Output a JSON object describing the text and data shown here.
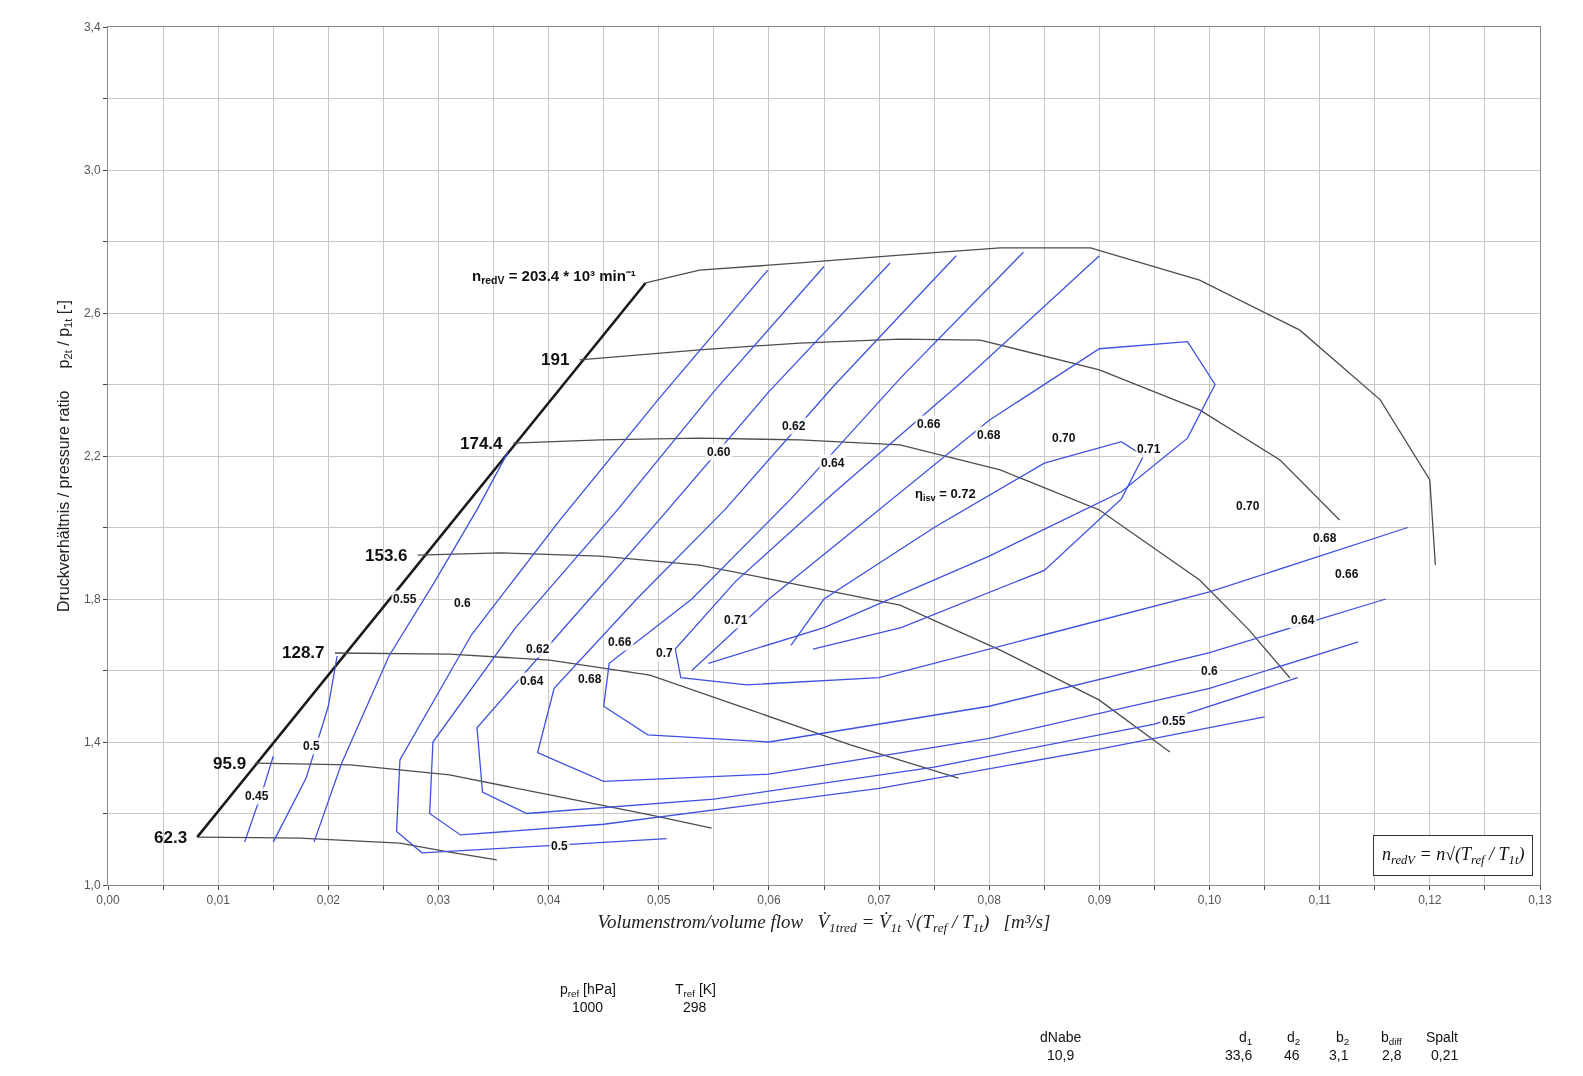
{
  "chart_data": {
    "type": "line",
    "xlabel": "Volumenstrom/volume flow   V̇$_{1tred}$ = V̇$_{1t}$ √(T$_{ref}$ / T$_{1t}$)   [m³/s]",
    "ylabel": "Druckverhältnis / pressure ratio     p$_{2t}$ / p$_{1t}$ [-]",
    "xlim": [
      0,
      0.13
    ],
    "ylim": [
      1.0,
      3.4
    ],
    "xticks": [
      {
        "value": 0,
        "label": "0,00"
      },
      {
        "value": 0.005,
        "label": null
      },
      {
        "value": 0.01,
        "label": "0,01"
      },
      {
        "value": 0.015,
        "label": null
      },
      {
        "value": 0.02,
        "label": "0,02"
      },
      {
        "value": 0.025,
        "label": null
      },
      {
        "value": 0.03,
        "label": "0,03"
      },
      {
        "value": 0.035,
        "label": null
      },
      {
        "value": 0.04,
        "label": "0,04"
      },
      {
        "value": 0.045,
        "label": null
      },
      {
        "value": 0.05,
        "label": "0,05"
      },
      {
        "value": 0.055,
        "label": null
      },
      {
        "value": 0.06,
        "label": "0,06"
      },
      {
        "value": 0.065,
        "label": null
      },
      {
        "value": 0.07,
        "label": "0,07"
      },
      {
        "value": 0.075,
        "label": null
      },
      {
        "value": 0.08,
        "label": "0,08"
      },
      {
        "value": 0.085,
        "label": null
      },
      {
        "value": 0.09,
        "label": "0,09"
      },
      {
        "value": 0.095,
        "label": null
      },
      {
        "value": 0.1,
        "label": "0,10"
      },
      {
        "value": 0.105,
        "label": null
      },
      {
        "value": 0.11,
        "label": "0,11"
      },
      {
        "value": 0.115,
        "label": null
      },
      {
        "value": 0.12,
        "label": "0,12"
      },
      {
        "value": 0.125,
        "label": null
      },
      {
        "value": 0.13,
        "label": "0,13"
      }
    ],
    "yticks": [
      {
        "value": 1.0,
        "label": "1,0"
      },
      {
        "value": 1.2,
        "label": null
      },
      {
        "value": 1.4,
        "label": "1,4"
      },
      {
        "value": 1.6,
        "label": null
      },
      {
        "value": 1.8,
        "label": "1,8"
      },
      {
        "value": 2.0,
        "label": null
      },
      {
        "value": 2.2,
        "label": "2,2"
      },
      {
        "value": 2.4,
        "label": null
      },
      {
        "value": 2.6,
        "label": "2,6"
      },
      {
        "value": 2.8,
        "label": null
      },
      {
        "value": 3.0,
        "label": "3,0"
      },
      {
        "value": 3.2,
        "label": null
      },
      {
        "value": 3.4,
        "label": "3,4"
      }
    ],
    "grid": true,
    "marker": "none",
    "line_style": "solid",
    "series": [
      {
        "color": "#1a1a1a",
        "x": [
          0.0081,
          0.0488
        ],
        "values": [
          1.134,
          2.684
        ]
      },
      {
        "color": "#4d4d4d",
        "x": [
          0.0081,
          0.0174,
          0.0265,
          0.031,
          0.0353
        ],
        "values": [
          1.134,
          1.131,
          1.117,
          1.092,
          1.07
        ]
      },
      {
        "color": "#4d4d4d",
        "x": [
          0.0134,
          0.022,
          0.031,
          0.0401,
          0.0492,
          0.0548
        ],
        "values": [
          1.341,
          1.336,
          1.308,
          1.252,
          1.196,
          1.159
        ]
      },
      {
        "color": "#4d4d4d",
        "x": [
          0.0206,
          0.031,
          0.0401,
          0.0492,
          0.0583,
          0.0674,
          0.0772
        ],
        "values": [
          1.649,
          1.646,
          1.629,
          1.587,
          1.49,
          1.392,
          1.299
        ]
      },
      {
        "color": "#4d4d4d",
        "x": [
          0.0281,
          0.0356,
          0.0447,
          0.0537,
          0.0628,
          0.0719,
          0.081,
          0.09,
          0.0964
        ],
        "values": [
          1.923,
          1.929,
          1.92,
          1.895,
          1.839,
          1.783,
          1.657,
          1.517,
          1.372
        ]
      },
      {
        "color": "#4d4d4d",
        "x": [
          0.0368,
          0.0447,
          0.0537,
          0.0628,
          0.0719,
          0.081,
          0.09,
          0.0991,
          0.1036,
          0.1073
        ],
        "values": [
          2.236,
          2.245,
          2.25,
          2.245,
          2.231,
          2.161,
          2.049,
          1.853,
          1.713,
          1.579
        ]
      },
      {
        "color": "#4d4d4d",
        "x": [
          0.0428,
          0.0537,
          0.0628,
          0.0719,
          0.0792,
          0.09,
          0.0991,
          0.1064,
          0.1118
        ],
        "values": [
          2.469,
          2.497,
          2.516,
          2.527,
          2.524,
          2.441,
          2.329,
          2.189,
          2.021
        ]
      },
      {
        "color": "#4d4d4d",
        "x": [
          0.0488,
          0.0537,
          0.0628,
          0.0719,
          0.081,
          0.0892,
          0.0991,
          0.1082,
          0.1155,
          0.12,
          0.1205
        ],
        "values": [
          2.684,
          2.72,
          2.74,
          2.762,
          2.782,
          2.782,
          2.692,
          2.552,
          2.357,
          2.133,
          1.895
        ]
      },
      {
        "color": "#3f51e0",
        "x": [
          0.0124,
          0.0142,
          0.015
        ],
        "values": [
          1.12,
          1.28,
          1.36
        ]
      },
      {
        "color": "#3f51e0",
        "x": [
          0.015,
          0.018,
          0.02,
          0.0208
        ],
        "values": [
          1.12,
          1.3,
          1.5,
          1.64
        ]
      },
      {
        "color": "#3f51e0",
        "x": [
          0.0187,
          0.0212,
          0.0255,
          0.0295,
          0.0335,
          0.0363
        ],
        "values": [
          1.12,
          1.34,
          1.64,
          1.84,
          2.05,
          2.21
        ]
      },
      {
        "color": "#3f51e0",
        "x": [
          0.0599,
          0.05,
          0.041,
          0.033,
          0.0265,
          0.0262,
          0.0285,
          0.04,
          0.0507
        ],
        "values": [
          2.72,
          2.36,
          2.02,
          1.7,
          1.35,
          1.15,
          1.09,
          1.11,
          1.13
        ]
      },
      {
        "color": "#3f51e0",
        "x": [
          0.065,
          0.055,
          0.046,
          0.037,
          0.0295,
          0.0292,
          0.032,
          0.045,
          0.07,
          0.09,
          0.105
        ],
        "values": [
          2.73,
          2.38,
          2.04,
          1.72,
          1.4,
          1.2,
          1.14,
          1.17,
          1.27,
          1.38,
          1.47
        ]
      },
      {
        "color": "#3f51e0",
        "x": [
          0.071,
          0.06,
          0.05,
          0.042,
          0.0335,
          0.034,
          0.038,
          0.055,
          0.075,
          0.095,
          0.108
        ],
        "values": [
          2.74,
          2.38,
          2.02,
          1.74,
          1.44,
          1.26,
          1.2,
          1.24,
          1.33,
          1.45,
          1.58
        ]
      },
      {
        "color": "#3f51e0",
        "x": [
          0.077,
          0.066,
          0.056,
          0.048,
          0.0405,
          0.039,
          0.045,
          0.06,
          0.08,
          0.1,
          0.1135
        ],
        "values": [
          2.76,
          2.4,
          2.05,
          1.8,
          1.55,
          1.37,
          1.29,
          1.31,
          1.41,
          1.55,
          1.68
        ]
      },
      {
        "color": "#3f51e0",
        "x": [
          0.0831,
          0.072,
          0.062,
          0.053,
          0.0455,
          0.045,
          0.049,
          0.06,
          0.08,
          0.1,
          0.116
        ],
        "values": [
          2.77,
          2.42,
          2.08,
          1.8,
          1.62,
          1.5,
          1.42,
          1.4,
          1.5,
          1.65,
          1.8
        ]
      },
      {
        "color": "#3f51e0",
        "x": [
          0.09,
          0.078,
          0.066,
          0.057,
          0.0515,
          0.052,
          0.058,
          0.07,
          0.085,
          0.1,
          0.118
        ],
        "values": [
          2.76,
          2.42,
          2.1,
          1.85,
          1.66,
          1.58,
          1.56,
          1.58,
          1.7,
          1.82,
          2.0
        ]
      },
      {
        "color": "#3f51e0",
        "x": [
          0.053,
          0.06,
          0.07,
          0.08,
          0.09,
          0.098,
          0.1005,
          0.098,
          0.092,
          0.08,
          0.065,
          0.0545
        ],
        "values": [
          1.6,
          1.8,
          2.05,
          2.3,
          2.5,
          2.52,
          2.4,
          2.25,
          2.1,
          1.92,
          1.72,
          1.62
        ]
      },
      {
        "color": "#3f51e0",
        "x": [
          0.062,
          0.065,
          0.075,
          0.085,
          0.092,
          0.094,
          0.092,
          0.085,
          0.072,
          0.064
        ],
        "values": [
          1.67,
          1.8,
          2.0,
          2.18,
          2.24,
          2.2,
          2.08,
          1.88,
          1.72,
          1.66
        ]
      }
    ],
    "annotations": [
      {
        "text": "n$_{redV}$ = 203.4 * 10³ min⁻¹",
        "x": 0.0488,
        "y": 2.684
      },
      {
        "text": "191",
        "x": 0.0428,
        "y": 2.469
      },
      {
        "text": "174.4",
        "x": 0.0368,
        "y": 2.236
      },
      {
        "text": "153.6",
        "x": 0.0281,
        "y": 1.923
      },
      {
        "text": "128.7",
        "x": 0.0206,
        "y": 1.649
      },
      {
        "text": "95.9",
        "x": 0.0134,
        "y": 1.341
      },
      {
        "text": "62.3",
        "x": 0.0081,
        "y": 1.134
      },
      {
        "text": "0.45",
        "x": 0.0135,
        "y": 1.25
      },
      {
        "text": "0.5",
        "x": 0.0185,
        "y": 1.39
      },
      {
        "text": "0.55",
        "x": 0.027,
        "y": 1.8
      },
      {
        "text": "0.6",
        "x": 0.0322,
        "y": 1.79
      },
      {
        "text": "0.62",
        "x": 0.039,
        "y": 1.66
      },
      {
        "text": "0.64",
        "x": 0.0385,
        "y": 1.57
      },
      {
        "text": "0.66",
        "x": 0.0465,
        "y": 1.68
      },
      {
        "text": "0.68",
        "x": 0.0438,
        "y": 1.575
      },
      {
        "text": "0.7",
        "x": 0.0505,
        "y": 1.65
      },
      {
        "text": "0.71",
        "x": 0.057,
        "y": 1.74
      },
      {
        "text": "0.60",
        "x": 0.0555,
        "y": 2.21
      },
      {
        "text": "0.62",
        "x": 0.0623,
        "y": 2.285
      },
      {
        "text": "0.64",
        "x": 0.0658,
        "y": 2.18
      },
      {
        "text": "0.66",
        "x": 0.0745,
        "y": 2.29
      },
      {
        "text": "0.68",
        "x": 0.08,
        "y": 2.26
      },
      {
        "text": "0.70",
        "x": 0.0868,
        "y": 2.25
      },
      {
        "text": "0.71",
        "x": 0.0945,
        "y": 2.22
      },
      {
        "text": "0.70",
        "x": 0.1035,
        "y": 2.06
      },
      {
        "text": "0.68",
        "x": 0.1105,
        "y": 1.97
      },
      {
        "text": "0.66",
        "x": 0.1125,
        "y": 1.87
      },
      {
        "text": "0.64",
        "x": 0.1085,
        "y": 1.74
      },
      {
        "text": "0.6",
        "x": 0.1,
        "y": 1.6
      },
      {
        "text": "0.55",
        "x": 0.0968,
        "y": 1.46
      },
      {
        "text": "0.5",
        "x": 0.041,
        "y": 1.11
      },
      "η$_{isv}$ = 0.72",
      "n$_{redV}$ = n√(T$_{ref}$ / T$_{1t}$)",
      "p$_{ref}$ [hPa]",
      "1000",
      "T$_{ref}$ [K]",
      "298",
      "dNabe",
      "10,9",
      "d$_{1}$",
      "33,6",
      "d$_{2}$",
      "46",
      "b$_{2}$",
      "3,1",
      "b$_{diff}$",
      "2,8",
      "Spalt",
      "0,21"
    ]
  }
}
